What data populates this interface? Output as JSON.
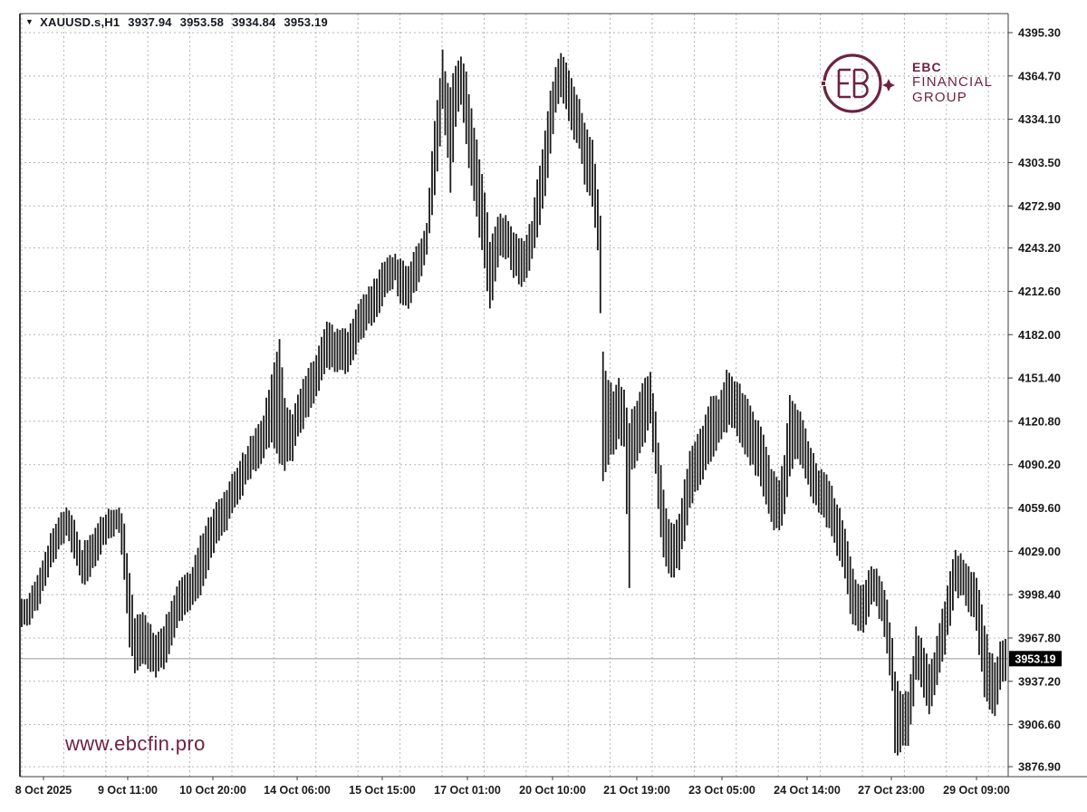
{
  "header": {
    "dropdown_icon": "▼",
    "symbol_period": "XAUUSD.s,H1",
    "open": "3937.94",
    "high": "3953.58",
    "low": "3934.84",
    "close": "3953.19"
  },
  "logo": {
    "line1": "EBC",
    "line2": "FINANCIAL",
    "line3": "GROUP",
    "color": "#6e2240"
  },
  "watermark": {
    "text": "www.ebcfin.pro",
    "color": "#6e2240"
  },
  "colors": {
    "background": "#ffffff",
    "bar": "#1a1a1a",
    "grid": "#b3b3b3",
    "axis_line": "#3c3c3c",
    "axis_text": "#1b1b1b",
    "current_price_line": "#a6a6a6",
    "badge_bg": "#000000",
    "badge_text": "#ffffff",
    "brand": "#6e2240"
  },
  "price_axis": {
    "tick_labels": [
      "4395.30",
      "4364.70",
      "4334.10",
      "4303.50",
      "4272.90",
      "4243.20",
      "4212.60",
      "4182.00",
      "4151.40",
      "4120.80",
      "4090.20",
      "4059.60",
      "4029.00",
      "3998.40",
      "3967.80",
      "3937.20",
      "3906.60",
      "3876.90"
    ],
    "tick_values": [
      4395.3,
      4364.7,
      4334.1,
      4303.5,
      4272.9,
      4243.2,
      4212.6,
      4182.0,
      4151.4,
      4120.8,
      4090.2,
      4059.6,
      4029.0,
      3998.4,
      3967.8,
      3937.2,
      3906.6,
      3876.9
    ],
    "current_label": "3953.19",
    "current_value": 3953.19
  },
  "time_axis": {
    "labels": [
      "8 Oct 2025",
      "9 Oct 11:00",
      "10 Oct 20:00",
      "14 Oct 06:00",
      "15 Oct 15:00",
      "17 Oct 01:00",
      "20 Oct 10:00",
      "21 Oct 19:00",
      "23 Oct 05:00",
      "24 Oct 14:00",
      "27 Oct 23:00",
      "29 Oct 09:00"
    ]
  },
  "chart_data": {
    "type": "bar",
    "subtype": "hlc-bars",
    "title": "XAUUSD.s,H1",
    "symbol": "XAUUSD.s",
    "timeframe": "H1",
    "last_bar": {
      "open": 3937.94,
      "high": 3953.58,
      "low": 3934.84,
      "close": 3953.19
    },
    "current_price": 3953.19,
    "ylim": [
      3876.9,
      4395.3
    ],
    "grid": true,
    "x_tick_labels": [
      "8 Oct 2025",
      "9 Oct 11:00",
      "10 Oct 20:00",
      "14 Oct 06:00",
      "15 Oct 15:00",
      "17 Oct 01:00",
      "20 Oct 10:00",
      "21 Oct 19:00",
      "23 Oct 05:00",
      "24 Oct 14:00",
      "27 Oct 23:00",
      "29 Oct 09:00"
    ],
    "y_tick_values": [
      4395.3,
      4364.7,
      4334.1,
      4303.5,
      4272.9,
      4243.2,
      4212.6,
      4182.0,
      4151.4,
      4120.8,
      4090.2,
      4059.6,
      4029.0,
      3998.4,
      3967.8,
      3937.2,
      3906.6,
      3876.9
    ],
    "bars_total": 375,
    "envelope_hl": [
      [
        0,
        3978,
        3998
      ],
      [
        2,
        3976,
        3994
      ],
      [
        6,
        3988,
        4012
      ],
      [
        9,
        4004,
        4030
      ],
      [
        12,
        4022,
        4046
      ],
      [
        17,
        4038,
        4060
      ],
      [
        20,
        4026,
        4050
      ],
      [
        23,
        4004,
        4032
      ],
      [
        26,
        4012,
        4040
      ],
      [
        30,
        4028,
        4052
      ],
      [
        33,
        4038,
        4058
      ],
      [
        37,
        4044,
        4062
      ],
      [
        39,
        4008,
        4048
      ],
      [
        41,
        3962,
        4012
      ],
      [
        43,
        3944,
        3982
      ],
      [
        46,
        3952,
        3986
      ],
      [
        49,
        3944,
        3976
      ],
      [
        51,
        3942,
        3970
      ],
      [
        54,
        3948,
        3978
      ],
      [
        57,
        3960,
        3992
      ],
      [
        59,
        3974,
        4004
      ],
      [
        62,
        3984,
        4012
      ],
      [
        65,
        3990,
        4016
      ],
      [
        68,
        4000,
        4040
      ],
      [
        71,
        4018,
        4052
      ],
      [
        74,
        4034,
        4062
      ],
      [
        78,
        4046,
        4072
      ],
      [
        81,
        4058,
        4086
      ],
      [
        85,
        4074,
        4100
      ],
      [
        88,
        4086,
        4112
      ],
      [
        92,
        4094,
        4126
      ],
      [
        95,
        4108,
        4155
      ],
      [
        98,
        4090,
        4180
      ],
      [
        100,
        4088,
        4136
      ],
      [
        103,
        4095,
        4125
      ],
      [
        105,
        4110,
        4140
      ],
      [
        109,
        4125,
        4158
      ],
      [
        112,
        4138,
        4168
      ],
      [
        116,
        4160,
        4192
      ],
      [
        119,
        4158,
        4186
      ],
      [
        122,
        4158,
        4188
      ],
      [
        124,
        4155,
        4185
      ],
      [
        128,
        4175,
        4205
      ],
      [
        131,
        4185,
        4212
      ],
      [
        135,
        4195,
        4222
      ],
      [
        138,
        4208,
        4236
      ],
      [
        142,
        4218,
        4240
      ],
      [
        144,
        4205,
        4234
      ],
      [
        147,
        4202,
        4230
      ],
      [
        150,
        4215,
        4242
      ],
      [
        152,
        4225,
        4252
      ],
      [
        154,
        4238,
        4262
      ],
      [
        157,
        4280,
        4335
      ],
      [
        159,
        4315,
        4365
      ],
      [
        160,
        4340,
        4381
      ],
      [
        162,
        4308,
        4360
      ],
      [
        163,
        4282,
        4356
      ],
      [
        165,
        4330,
        4374
      ],
      [
        167,
        4344,
        4378
      ],
      [
        169,
        4318,
        4366
      ],
      [
        170,
        4300,
        4350
      ],
      [
        172,
        4278,
        4330
      ],
      [
        174,
        4252,
        4308
      ],
      [
        177,
        4214,
        4268
      ],
      [
        178,
        4199,
        4246
      ],
      [
        180,
        4218,
        4260
      ],
      [
        182,
        4238,
        4268
      ],
      [
        185,
        4234,
        4262
      ],
      [
        187,
        4224,
        4254
      ],
      [
        190,
        4218,
        4248
      ],
      [
        192,
        4222,
        4252
      ],
      [
        194,
        4234,
        4264
      ],
      [
        196,
        4250,
        4290
      ],
      [
        199,
        4278,
        4328
      ],
      [
        201,
        4308,
        4352
      ],
      [
        203,
        4338,
        4370
      ],
      [
        205,
        4352,
        4383
      ],
      [
        207,
        4342,
        4374
      ],
      [
        208,
        4332,
        4368
      ],
      [
        210,
        4320,
        4356
      ],
      [
        212,
        4315,
        4348
      ],
      [
        214,
        4288,
        4330
      ],
      [
        217,
        4274,
        4318
      ],
      [
        219,
        4243,
        4284
      ],
      [
        220,
        4198,
        4268
      ],
      [
        221,
        4081,
        4168
      ],
      [
        223,
        4092,
        4150
      ],
      [
        225,
        4098,
        4144
      ],
      [
        227,
        4108,
        4150
      ],
      [
        229,
        4102,
        4144
      ],
      [
        231,
        4004,
        4119
      ],
      [
        232,
        4086,
        4128
      ],
      [
        235,
        4098,
        4140
      ],
      [
        237,
        4108,
        4152
      ],
      [
        239,
        4118,
        4158
      ],
      [
        241,
        4082,
        4128
      ],
      [
        243,
        4038,
        4088
      ],
      [
        245,
        4016,
        4058
      ],
      [
        248,
        4011,
        4046
      ],
      [
        250,
        4018,
        4056
      ],
      [
        252,
        4038,
        4078
      ],
      [
        254,
        4058,
        4098
      ],
      [
        257,
        4074,
        4112
      ],
      [
        260,
        4084,
        4124
      ],
      [
        262,
        4094,
        4138
      ],
      [
        265,
        4104,
        4138
      ],
      [
        268,
        4114,
        4156
      ],
      [
        270,
        4118,
        4154
      ],
      [
        273,
        4108,
        4146
      ],
      [
        275,
        4098,
        4138
      ],
      [
        278,
        4088,
        4128
      ],
      [
        281,
        4076,
        4116
      ],
      [
        283,
        4063,
        4103
      ],
      [
        285,
        4048,
        4088
      ],
      [
        288,
        4042,
        4078
      ],
      [
        290,
        4054,
        4098
      ],
      [
        292,
        4084,
        4137
      ],
      [
        294,
        4094,
        4134
      ],
      [
        297,
        4088,
        4124
      ],
      [
        299,
        4074,
        4108
      ],
      [
        301,
        4064,
        4096
      ],
      [
        303,
        4056,
        4088
      ],
      [
        306,
        4048,
        4083
      ],
      [
        308,
        4038,
        4073
      ],
      [
        311,
        4023,
        4058
      ],
      [
        313,
        4011,
        4046
      ],
      [
        315,
        3984,
        4024
      ],
      [
        318,
        3971,
        4004
      ],
      [
        320,
        3974,
        4006
      ],
      [
        322,
        3984,
        4014
      ],
      [
        324,
        3994,
        4018
      ],
      [
        327,
        3978,
        4008
      ],
      [
        329,
        3958,
        3994
      ],
      [
        331,
        3928,
        3968
      ],
      [
        332,
        3885,
        3946
      ],
      [
        334,
        3888,
        3928
      ],
      [
        337,
        3894,
        3931
      ],
      [
        339,
        3918,
        3954
      ],
      [
        340,
        3938,
        3974
      ],
      [
        342,
        3934,
        3966
      ],
      [
        345,
        3913,
        3949
      ],
      [
        347,
        3928,
        3960
      ],
      [
        349,
        3944,
        3979
      ],
      [
        351,
        3958,
        3996
      ],
      [
        353,
        3978,
        4016
      ],
      [
        355,
        3999,
        4029
      ],
      [
        358,
        3996,
        4025
      ],
      [
        360,
        3988,
        4018
      ],
      [
        362,
        3983,
        4012
      ],
      [
        364,
        3958,
        4004
      ],
      [
        366,
        3928,
        3978
      ],
      [
        368,
        3918,
        3960
      ],
      [
        370,
        3914,
        3950
      ],
      [
        372,
        3932,
        3963
      ],
      [
        374,
        3938,
        3966
      ]
    ]
  }
}
